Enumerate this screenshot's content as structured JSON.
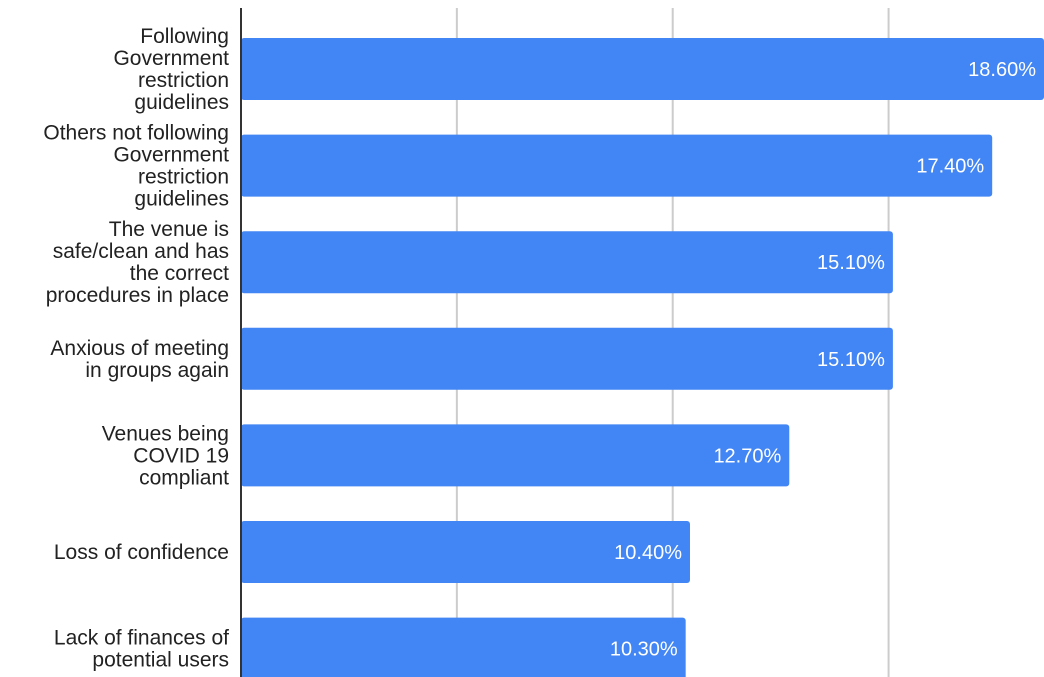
{
  "chart_data": {
    "type": "bar",
    "orientation": "horizontal",
    "title": "",
    "xlabel": "",
    "ylabel": "",
    "xlim": [
      0,
      0.186
    ],
    "grid": true,
    "legend": "none",
    "bar_color": "#4285f4",
    "categories": [
      "Following Government restriction guidelines",
      "Others not following Government restriction guidelines",
      "The venue is safe/clean and has the correct procedures in place",
      "Anxious of meeting in groups again",
      "Venues being COVID 19 compliant",
      "Loss of confidence",
      "Lack of finances of potential users"
    ],
    "category_lines": [
      [
        "Following",
        "Government",
        "restriction",
        "guidelines"
      ],
      [
        "Others not following",
        "Government",
        "restriction",
        "guidelines"
      ],
      [
        "The venue is",
        "safe/clean and has",
        "the correct",
        "procedures in place"
      ],
      [
        "Anxious of meeting",
        "in groups again"
      ],
      [
        "Venues being",
        "COVID 19",
        "compliant"
      ],
      [
        "Loss of confidence"
      ],
      [
        "Lack of finances of",
        "potential users"
      ]
    ],
    "values": [
      0.186,
      0.174,
      0.151,
      0.151,
      0.127,
      0.104,
      0.103
    ],
    "data_labels": [
      "18.60%",
      "17.40%",
      "15.10%",
      "15.10%",
      "12.70%",
      "10.40%",
      "10.30%"
    ]
  }
}
